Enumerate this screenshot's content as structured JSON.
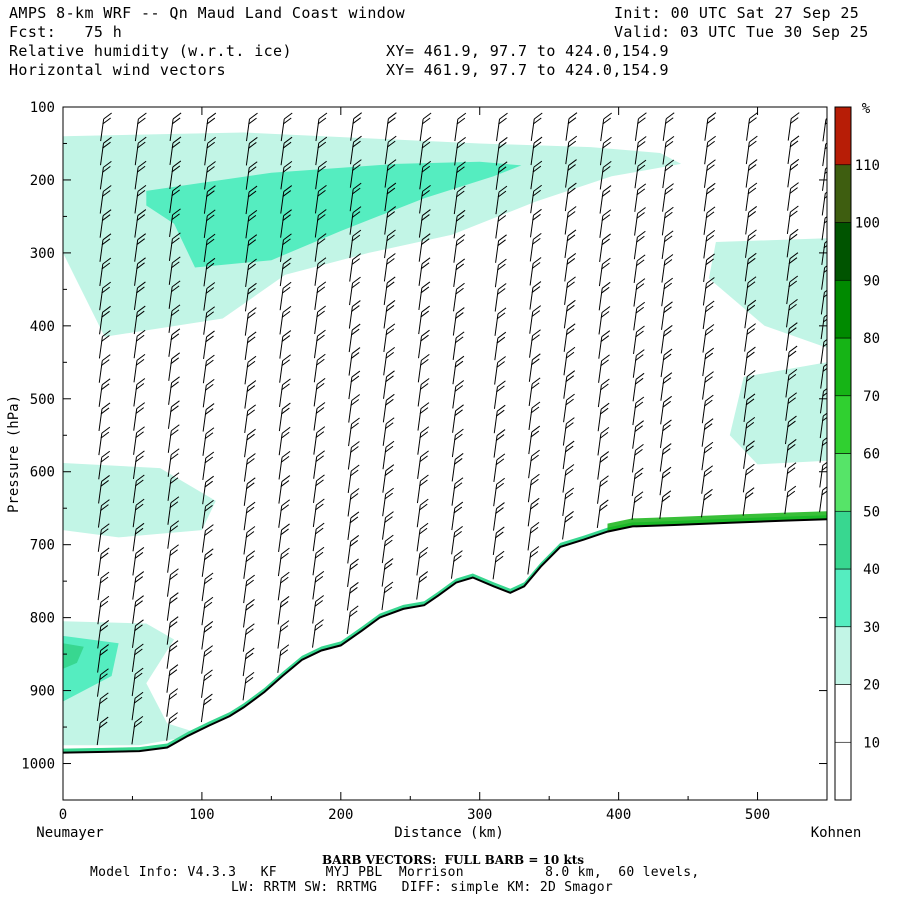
{
  "header": {
    "title": "AMPS 8-km WRF -- Qn Maud Land Coast window",
    "init": "Init: 00 UTC Sat 27 Sep 25",
    "fcst": "Fcst:   75 h",
    "valid": "Valid: 03 UTC Tue 30 Sep 25",
    "field1": "Relative humidity (w.r.t. ice)",
    "field2": "Horizontal wind vectors",
    "xy1": "XY= 461.9, 97.7 to 424.0,154.9",
    "xy2": "XY= 461.9, 97.7 to 424.0,154.9"
  },
  "footer": {
    "barb_note": "BARB VECTORS:  FULL BARB = 10 kts",
    "model_info": "Model Info: V4.3.3   KF      MYJ PBL  Morrison          8.0 km,  60 levels,",
    "physics": "LW: RRTM SW: RRTMG   DIFF: simple KM: 2D Smagor"
  },
  "chart_data": {
    "type": "cross-section",
    "title": "Relative humidity (w.r.t. ice) and horizontal wind vectors",
    "xlabel": "Distance (km)",
    "ylabel": "Pressure (hPa)",
    "xlim": [
      0,
      550
    ],
    "ylim": [
      1050,
      100
    ],
    "x_ticks": [
      0,
      100,
      200,
      300,
      400,
      500
    ],
    "y_ticks": [
      100,
      200,
      300,
      400,
      500,
      600,
      700,
      800,
      900,
      1000
    ],
    "x_end_labels": {
      "left": "Neumayer",
      "right": "Kohnen"
    },
    "colorbar": {
      "unit": "%",
      "ticks": [
        10,
        20,
        30,
        40,
        50,
        60,
        70,
        80,
        90,
        100,
        110
      ],
      "levels": [
        0,
        10,
        20,
        30,
        40,
        50,
        60,
        70,
        80,
        90,
        100,
        110,
        120
      ],
      "colors": [
        "#ffffff",
        "#ffffff",
        "#ffffff",
        "#c2f5e6",
        "#55edc0",
        "#38d790",
        "#56e468",
        "#30d030",
        "#16b416",
        "#008a00",
        "#005400",
        "#3e5e10",
        "#b71d06"
      ]
    },
    "terrain_profile": [
      [
        0,
        985
      ],
      [
        30,
        984
      ],
      [
        55,
        983
      ],
      [
        75,
        978
      ],
      [
        90,
        962
      ],
      [
        105,
        948
      ],
      [
        120,
        935
      ],
      [
        130,
        923
      ],
      [
        145,
        902
      ],
      [
        158,
        880
      ],
      [
        172,
        858
      ],
      [
        186,
        845
      ],
      [
        200,
        838
      ],
      [
        215,
        818
      ],
      [
        228,
        800
      ],
      [
        245,
        788
      ],
      [
        260,
        783
      ],
      [
        270,
        770
      ],
      [
        283,
        752
      ],
      [
        295,
        745
      ],
      [
        310,
        757
      ],
      [
        322,
        766
      ],
      [
        332,
        757
      ],
      [
        344,
        730
      ],
      [
        358,
        703
      ],
      [
        375,
        693
      ],
      [
        392,
        682
      ],
      [
        410,
        675
      ],
      [
        440,
        673
      ],
      [
        480,
        670
      ],
      [
        520,
        667
      ],
      [
        550,
        665
      ]
    ],
    "rh_regions": [
      {
        "level": 30,
        "label": "upper-tropospheric moist layer",
        "points": [
          [
            0,
            140
          ],
          [
            130,
            135
          ],
          [
            300,
            150
          ],
          [
            380,
            155
          ],
          [
            430,
            163
          ],
          [
            445,
            178
          ],
          [
            395,
            195
          ],
          [
            340,
            230
          ],
          [
            280,
            275
          ],
          [
            220,
            300
          ],
          [
            160,
            330
          ],
          [
            115,
            390
          ],
          [
            30,
            415
          ],
          [
            0,
            300
          ]
        ]
      },
      {
        "level": 40,
        "label": "upper moist core",
        "points": [
          [
            60,
            215
          ],
          [
            150,
            190
          ],
          [
            240,
            178
          ],
          [
            300,
            175
          ],
          [
            330,
            180
          ],
          [
            310,
            195
          ],
          [
            260,
            225
          ],
          [
            200,
            270
          ],
          [
            150,
            310
          ],
          [
            95,
            320
          ],
          [
            80,
            260
          ],
          [
            60,
            235
          ]
        ]
      },
      {
        "level": 30,
        "label": "mid-level moist patch",
        "points": [
          [
            0,
            588
          ],
          [
            70,
            595
          ],
          [
            110,
            640
          ],
          [
            100,
            680
          ],
          [
            40,
            690
          ],
          [
            0,
            680
          ]
        ]
      },
      {
        "level": 30,
        "label": "east upper patch",
        "points": [
          [
            470,
            285
          ],
          [
            550,
            280
          ],
          [
            550,
            430
          ],
          [
            505,
            400
          ],
          [
            465,
            335
          ]
        ]
      },
      {
        "level": 30,
        "label": "east mid patch",
        "points": [
          [
            490,
            470
          ],
          [
            550,
            450
          ],
          [
            550,
            585
          ],
          [
            500,
            590
          ],
          [
            480,
            550
          ]
        ]
      },
      {
        "level": 30,
        "label": "boundary-layer moist layer",
        "points": [
          [
            0,
            805
          ],
          [
            60,
            808
          ],
          [
            80,
            830
          ],
          [
            60,
            890
          ],
          [
            75,
            945
          ],
          [
            100,
            960
          ],
          [
            55,
            975
          ],
          [
            0,
            975
          ]
        ]
      },
      {
        "level": 40,
        "label": "boundary-layer moist core",
        "points": [
          [
            0,
            825
          ],
          [
            40,
            835
          ],
          [
            35,
            880
          ],
          [
            0,
            915
          ]
        ]
      },
      {
        "level": 50,
        "label": "boundary-layer moist center",
        "points": [
          [
            0,
            835
          ],
          [
            15,
            840
          ],
          [
            10,
            862
          ],
          [
            0,
            870
          ]
        ]
      }
    ],
    "wind_barb_columns_km": [
      25,
      50,
      75,
      100,
      130,
      155,
      180,
      205,
      230,
      255,
      280,
      310,
      335,
      360,
      385,
      410,
      430,
      460,
      490,
      520,
      545
    ],
    "barb_full_kts": 10
  }
}
